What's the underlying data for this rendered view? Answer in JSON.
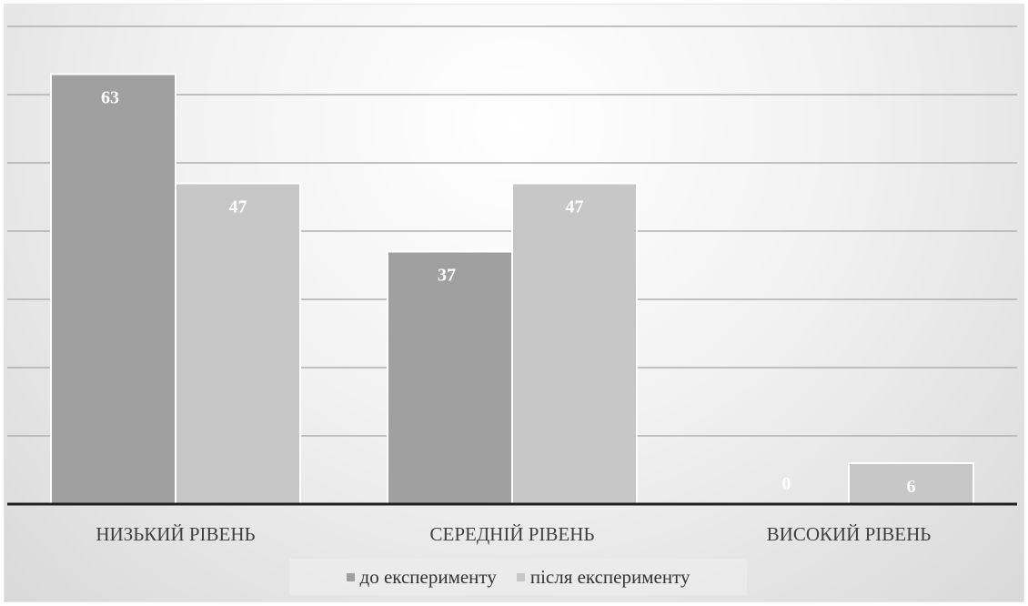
{
  "colors": {
    "series_1": "#a0a0a0",
    "series_2": "#c7c7c7",
    "gridline": "#b0b0b0",
    "axis": "#1f1f1f",
    "data_label": "#ffffff"
  },
  "chart_data": {
    "type": "bar",
    "categories": [
      "НИЗЬКИЙ РІВЕНЬ",
      "СЕРЕДНІЙ РІВЕНЬ",
      "ВИСОКИЙ РІВЕНЬ"
    ],
    "series": [
      {
        "name": "до експерименту",
        "values": [
          63,
          37,
          0
        ]
      },
      {
        "name": "після експерименту",
        "values": [
          47,
          47,
          6
        ]
      }
    ],
    "ylim": [
      0,
      70
    ],
    "gridlines": [
      10,
      20,
      30,
      40,
      50,
      60,
      70
    ],
    "grid": true,
    "legend_position": "bottom",
    "data_labels": true
  }
}
